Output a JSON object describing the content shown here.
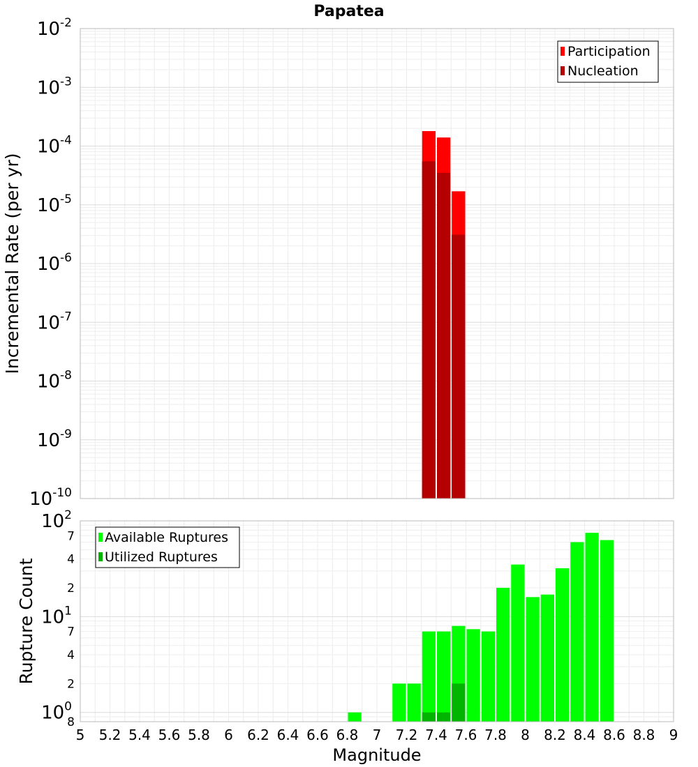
{
  "title": "Papatea",
  "xlabel": "Magnitude",
  "x_ticks": [
    "5",
    "5.2",
    "5.4",
    "5.6",
    "5.8",
    "6",
    "6.2",
    "6.4",
    "6.6",
    "6.8",
    "7",
    "7.2",
    "7.4",
    "7.6",
    "7.8",
    "8",
    "8.2",
    "8.4",
    "8.6",
    "8.8",
    "9"
  ],
  "chart_data": [
    {
      "type": "bar",
      "panel": "top",
      "ylabel": "Incremental Rate (per yr)",
      "xlim": [
        5,
        9
      ],
      "ylim": [
        1e-10,
        0.01
      ],
      "yscale": "log",
      "grid": true,
      "bar_width": 0.1,
      "y_ticks": [
        {
          "base": "10",
          "exp": "-2"
        },
        {
          "base": "10",
          "exp": "-3"
        },
        {
          "base": "10",
          "exp": "-4"
        },
        {
          "base": "10",
          "exp": "-5"
        },
        {
          "base": "10",
          "exp": "-6"
        },
        {
          "base": "10",
          "exp": "-7"
        },
        {
          "base": "10",
          "exp": "-8"
        },
        {
          "base": "10",
          "exp": "-9"
        },
        {
          "base": "10",
          "exp": "-10"
        }
      ],
      "legend_position": "top-right",
      "series": [
        {
          "name": "Participation",
          "color": "#ff0000",
          "x": [
            7.35,
            7.45,
            7.55
          ],
          "values": [
            0.00018,
            0.00014,
            1.7e-05
          ]
        },
        {
          "name": "Nucleation",
          "color": "#b40000",
          "x": [
            7.35,
            7.45,
            7.55
          ],
          "values": [
            5.5e-05,
            3.5e-05,
            3.1e-06
          ]
        }
      ]
    },
    {
      "type": "bar",
      "panel": "bottom",
      "ylabel": "Rupture Count",
      "xlim": [
        5,
        9
      ],
      "ylim": [
        0.8,
        100
      ],
      "yscale": "log",
      "grid": true,
      "bar_width": 0.1,
      "y_major_ticks": [
        {
          "base": "10",
          "exp": "2"
        },
        {
          "base": "10",
          "exp": "1"
        },
        {
          "base": "10",
          "exp": "0"
        }
      ],
      "y_minor_ticks": [
        "7",
        "4",
        "2",
        "7",
        "4",
        "2",
        "8"
      ],
      "legend_position": "top-left",
      "series": [
        {
          "name": "Available Ruptures",
          "color": "#00ff00",
          "x": [
            6.85,
            7.15,
            7.25,
            7.35,
            7.45,
            7.55,
            7.65,
            7.75,
            7.85,
            7.95,
            8.05,
            8.15,
            8.25,
            8.35,
            8.45,
            8.55
          ],
          "values": [
            1,
            2,
            2,
            7,
            7,
            8,
            7.4,
            7,
            20,
            35,
            16,
            17,
            32,
            60,
            75,
            63
          ]
        },
        {
          "name": "Utilized Ruptures",
          "color": "#00b400",
          "x": [
            7.35,
            7.45,
            7.55
          ],
          "values": [
            1,
            1,
            2
          ]
        }
      ]
    }
  ]
}
